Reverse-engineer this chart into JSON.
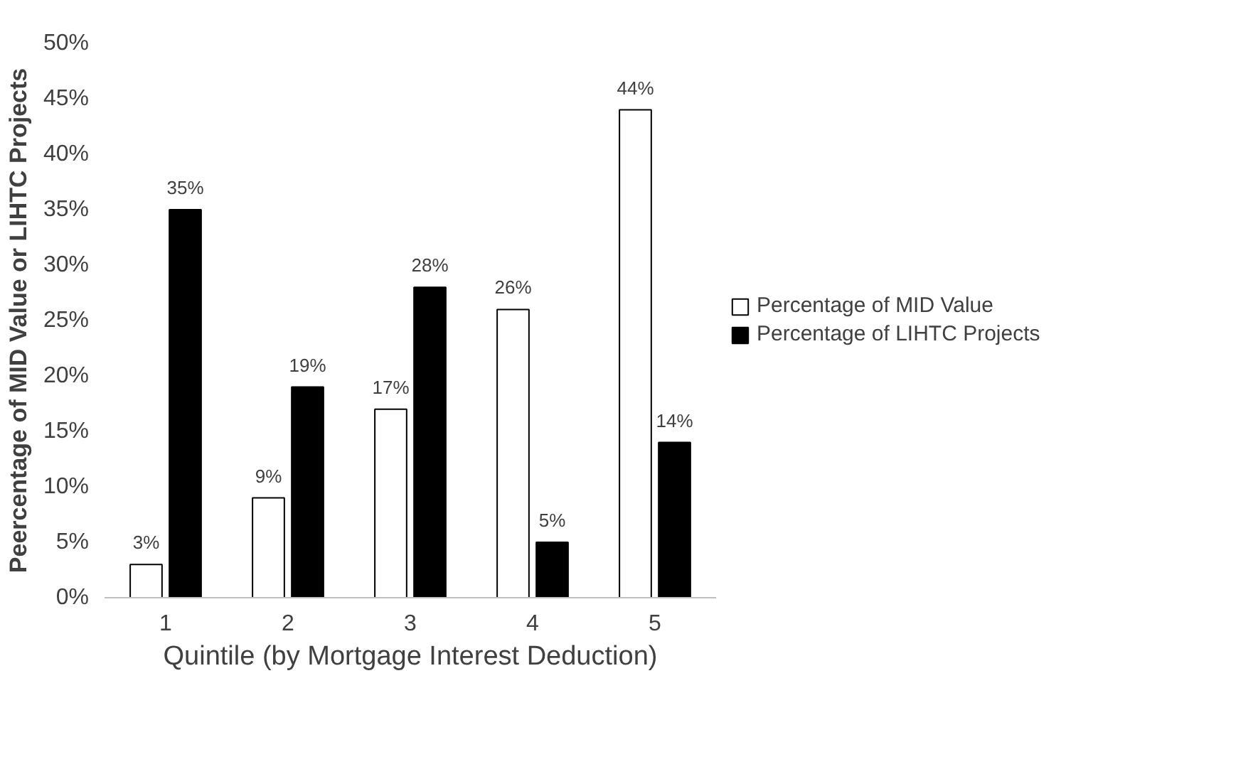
{
  "chart_data": {
    "type": "bar",
    "xlabel": "Quintile (by Mortgage Interest Deduction)",
    "ylabel": "Peercentage of MID Value or LIHTC Projects",
    "categories": [
      "1",
      "2",
      "3",
      "4",
      "5"
    ],
    "series": [
      {
        "name": "Percentage of MID Value",
        "color": "#ffffff",
        "values": [
          3,
          9,
          17,
          26,
          44
        ],
        "value_labels": [
          "3%",
          "9%",
          "17%",
          "26%",
          "44%"
        ]
      },
      {
        "name": "Percentage of LIHTC Projects",
        "color": "#000000",
        "values": [
          35,
          19,
          28,
          5,
          14
        ],
        "value_labels": [
          "35%",
          "19%",
          "28%",
          "5%",
          "14%"
        ]
      }
    ],
    "ylim": [
      0,
      50
    ],
    "yticks": [
      {
        "value": 0,
        "label": "0%"
      },
      {
        "value": 5,
        "label": "5%"
      },
      {
        "value": 10,
        "label": "10%"
      },
      {
        "value": 15,
        "label": "15%"
      },
      {
        "value": 20,
        "label": "20%"
      },
      {
        "value": 25,
        "label": "25%"
      },
      {
        "value": 30,
        "label": "30%"
      },
      {
        "value": 35,
        "label": "35%"
      },
      {
        "value": 40,
        "label": "40%"
      },
      {
        "value": 45,
        "label": "45%"
      },
      {
        "value": 50,
        "label": "50%"
      }
    ],
    "grid": false,
    "legend": "right"
  }
}
